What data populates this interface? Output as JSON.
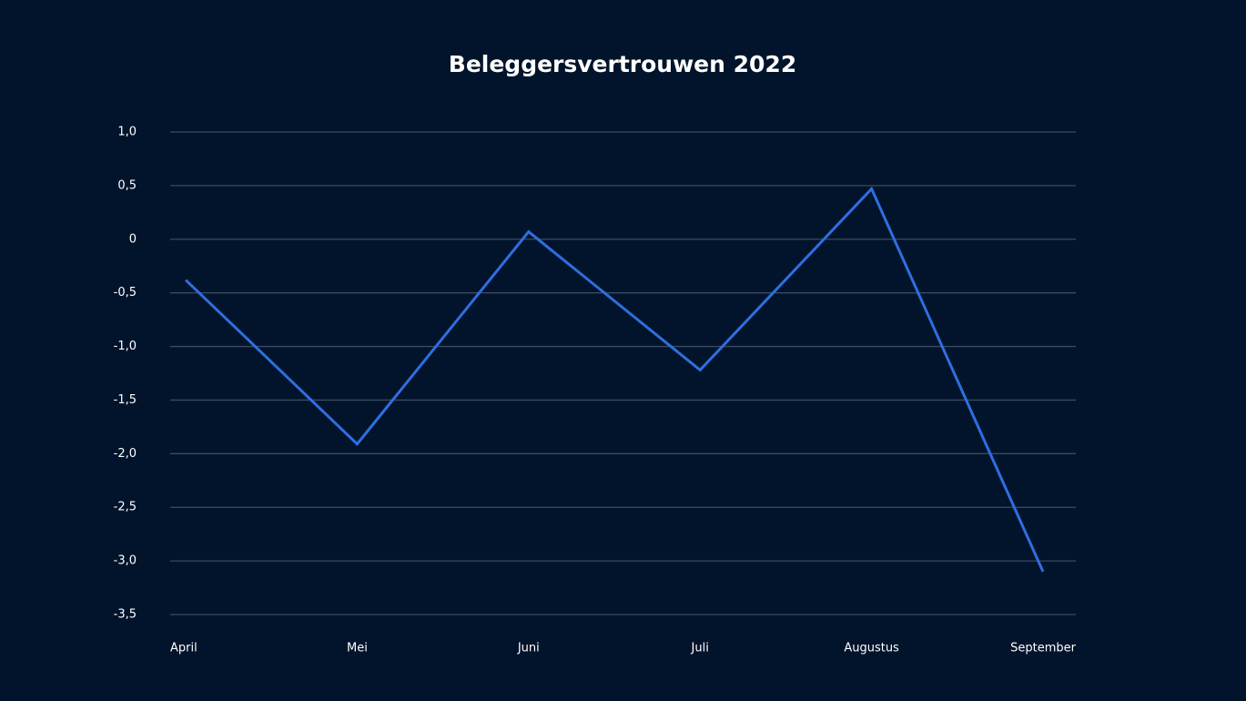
{
  "chart_data": {
    "type": "line",
    "title": "Beleggersvertrouwen 2022",
    "categories": [
      "April",
      "Mei",
      "Juni",
      "Juli",
      "Augustus",
      "September"
    ],
    "values": [
      -0.38,
      -1.91,
      0.07,
      -1.22,
      0.47,
      -3.1
    ],
    "color": "#2f6ee0",
    "ylim": [
      -3.5,
      1.0
    ],
    "yticks": [
      {
        "value": 1.0,
        "label": "1,0"
      },
      {
        "value": 0.5,
        "label": "0,5"
      },
      0,
      {
        "value": -0.5,
        "label": "-0,5"
      },
      {
        "value": -1.0,
        "label": "-1,0"
      },
      {
        "value": -1.5,
        "label": "-1,5"
      },
      {
        "value": -2.0,
        "label": "-2,0"
      },
      {
        "value": -2.5,
        "label": "-2,5"
      },
      {
        "value": -3.0,
        "label": "-3,0"
      },
      {
        "value": -3.5,
        "label": "-3,5"
      }
    ],
    "grid": true
  }
}
